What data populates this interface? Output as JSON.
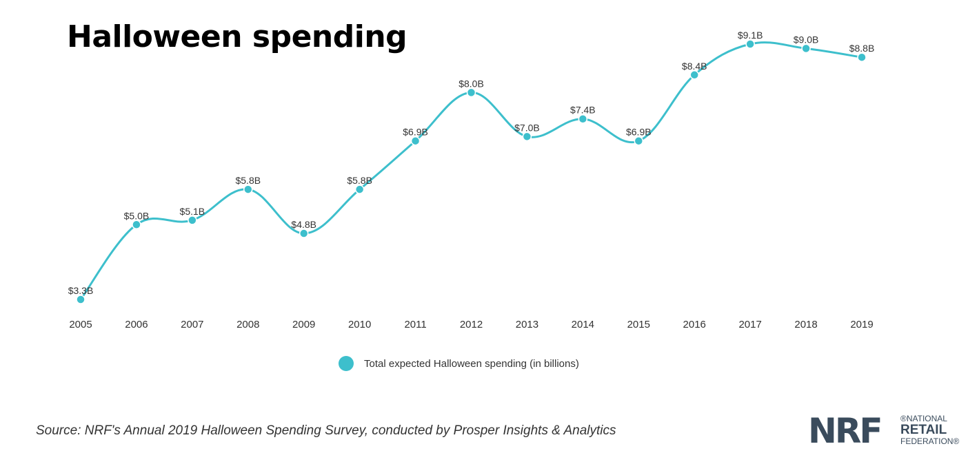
{
  "title": "Halloween spending",
  "source": "Source: NRF's Annual 2019 Halloween Spending Survey, conducted by Prosper Insights & Analytics",
  "logo": {
    "mark": "NRF",
    "line1": "®NATIONAL",
    "line2": "RETAIL",
    "line3": "FEDERATION®"
  },
  "colors": {
    "series": "#3dbfcc",
    "text": "#333333",
    "logo": "#3a4b5c"
  },
  "chart_data": {
    "type": "line",
    "x": [
      "2005",
      "2006",
      "2007",
      "2008",
      "2009",
      "2010",
      "2011",
      "2012",
      "2013",
      "2014",
      "2015",
      "2016",
      "2017",
      "2018",
      "2019"
    ],
    "series": [
      {
        "name": "Total expected Halloween spending (in billions)",
        "values": [
          3.3,
          5.0,
          5.1,
          5.8,
          4.8,
          5.8,
          6.9,
          8.0,
          7.0,
          7.4,
          6.9,
          8.4,
          9.1,
          9.0,
          8.8
        ],
        "labels": [
          "$3.3B",
          "$5.0B",
          "$5.1B",
          "$5.8B",
          "$4.8B",
          "$5.8B",
          "$6.9B",
          "$8.0B",
          "$7.0B",
          "$7.4B",
          "$6.9B",
          "$8.4B",
          "$9.1B",
          "$9.0B",
          "$8.8B"
        ]
      }
    ],
    "xlabel": "",
    "ylabel": "",
    "legend": "bottom-center",
    "grid": false,
    "smooth": true
  }
}
